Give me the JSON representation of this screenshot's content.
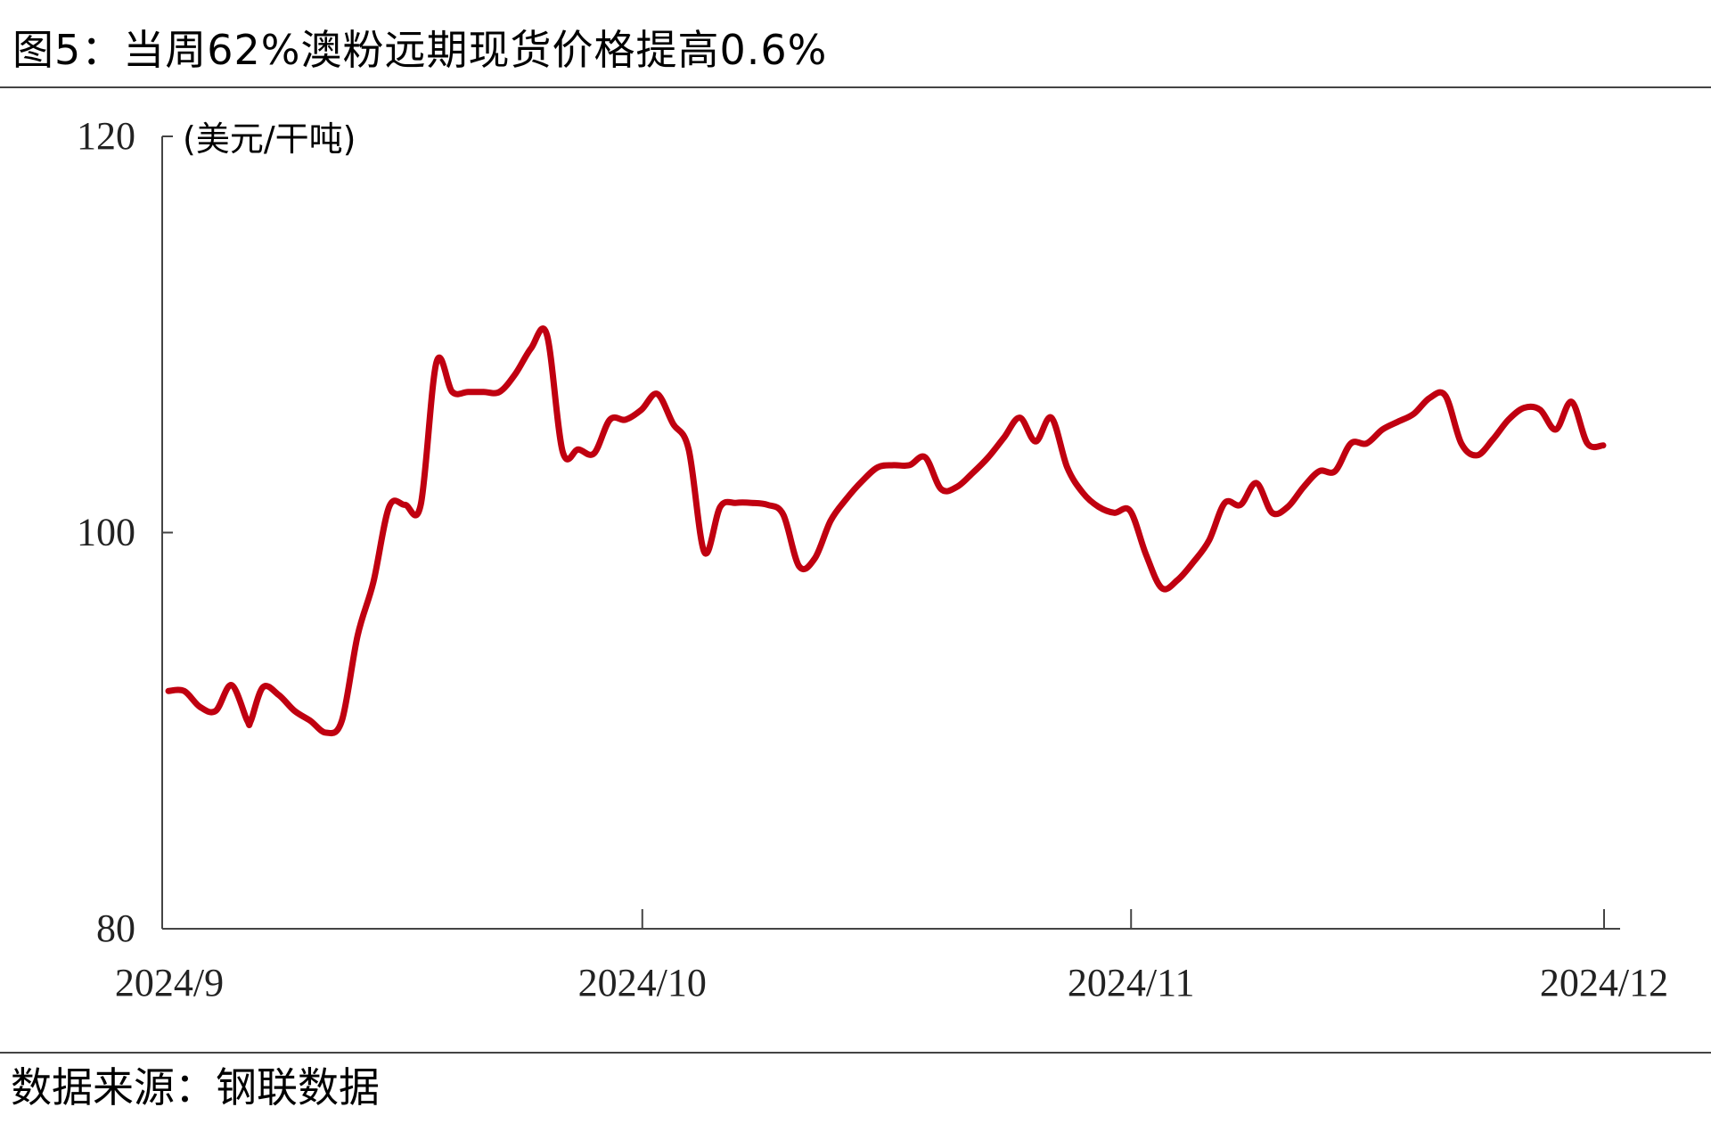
{
  "title": "图5：当周62%澳粉远期现货价格提高0.6%",
  "source": "数据来源：钢联数据",
  "colors": {
    "series": "#C00010",
    "axis": "#444444",
    "text": "#222222"
  },
  "chart_data": {
    "type": "line",
    "title": "图5：当周62%澳粉远期现货价格提高0.6%",
    "unit": "(美元/干吨)",
    "xlabel": "",
    "ylabel": "",
    "ylim": [
      80,
      120
    ],
    "yticks": [
      80,
      100,
      120
    ],
    "xlim": [
      "2024-09-01",
      "2024-12-01"
    ],
    "xtick_labels": [
      "2024/9",
      "2024/10",
      "2024/11",
      "2024/12"
    ],
    "xtick_dates": [
      "2024-09-01",
      "2024-10-01",
      "2024-11-01",
      "2024-12-01"
    ],
    "grid": false,
    "legend": "none",
    "series": [
      {
        "x": [
          "2024-09-01",
          "2024-09-02",
          "2024-09-03",
          "2024-09-04",
          "2024-09-05",
          "2024-09-06",
          "2024-09-06",
          "2024-09-07",
          "2024-09-08",
          "2024-09-09",
          "2024-09-10",
          "2024-09-11",
          "2024-09-12",
          "2024-09-13",
          "2024-09-14",
          "2024-09-15",
          "2024-09-16",
          "2024-09-17",
          "2024-09-18",
          "2024-09-19",
          "2024-09-20",
          "2024-09-21",
          "2024-09-22",
          "2024-09-23",
          "2024-09-24",
          "2024-09-25",
          "2024-09-26",
          "2024-09-27",
          "2024-09-28",
          "2024-09-29",
          "2024-09-30",
          "2024-10-01",
          "2024-10-02",
          "2024-10-03",
          "2024-10-04",
          "2024-10-05",
          "2024-10-06",
          "2024-10-07",
          "2024-10-08",
          "2024-10-09",
          "2024-10-10",
          "2024-10-11",
          "2024-10-12",
          "2024-10-13",
          "2024-10-14",
          "2024-10-15",
          "2024-10-16",
          "2024-10-17",
          "2024-10-18",
          "2024-10-19",
          "2024-10-20",
          "2024-10-21",
          "2024-10-22",
          "2024-10-23",
          "2024-10-24",
          "2024-10-25",
          "2024-10-26",
          "2024-10-27",
          "2024-10-28",
          "2024-10-29",
          "2024-10-30",
          "2024-10-31",
          "2024-11-01",
          "2024-11-02",
          "2024-11-03",
          "2024-11-04",
          "2024-11-05",
          "2024-11-06",
          "2024-11-07",
          "2024-11-08",
          "2024-11-09",
          "2024-11-10",
          "2024-11-11",
          "2024-11-12",
          "2024-11-13",
          "2024-11-14",
          "2024-11-15",
          "2024-11-16",
          "2024-11-17",
          "2024-11-18",
          "2024-11-19",
          "2024-11-20",
          "2024-11-21",
          "2024-11-22",
          "2024-11-23",
          "2024-11-24",
          "2024-11-25",
          "2024-11-26",
          "2024-11-27",
          "2024-11-28",
          "2024-11-29",
          "2024-11-30",
          "2024-12-01"
        ],
        "values": [
          92.0,
          92.0,
          91.2,
          91.0,
          92.3,
          90.5,
          90.5,
          92.2,
          91.8,
          91.0,
          90.5,
          89.9,
          90.5,
          94.8,
          97.5,
          101.3,
          101.4,
          101.4,
          108.6,
          107.1,
          107.1,
          107.1,
          107.1,
          108.0,
          109.3,
          110.0,
          104.1,
          104.2,
          104.0,
          105.7,
          105.7,
          106.2,
          107.0,
          105.5,
          104.2,
          99.0,
          101.3,
          101.5,
          101.5,
          101.4,
          100.9,
          98.3,
          98.7,
          100.6,
          101.7,
          102.6,
          103.3,
          103.4,
          103.4,
          103.8,
          102.2,
          102.3,
          103.0,
          103.8,
          104.8,
          105.8,
          104.6,
          105.8,
          103.3,
          102.0,
          101.3,
          101.0,
          101.1,
          98.9,
          97.2,
          97.6,
          98.5,
          99.6,
          101.5,
          101.4,
          102.5,
          101.0,
          101.3,
          102.3,
          103.1,
          103.1,
          104.5,
          104.5,
          105.2,
          105.6,
          106.0,
          106.8,
          106.9,
          104.5,
          103.9,
          104.7,
          105.7,
          106.3,
          106.2,
          105.2,
          106.6,
          104.5,
          104.4
        ]
      }
    ]
  }
}
